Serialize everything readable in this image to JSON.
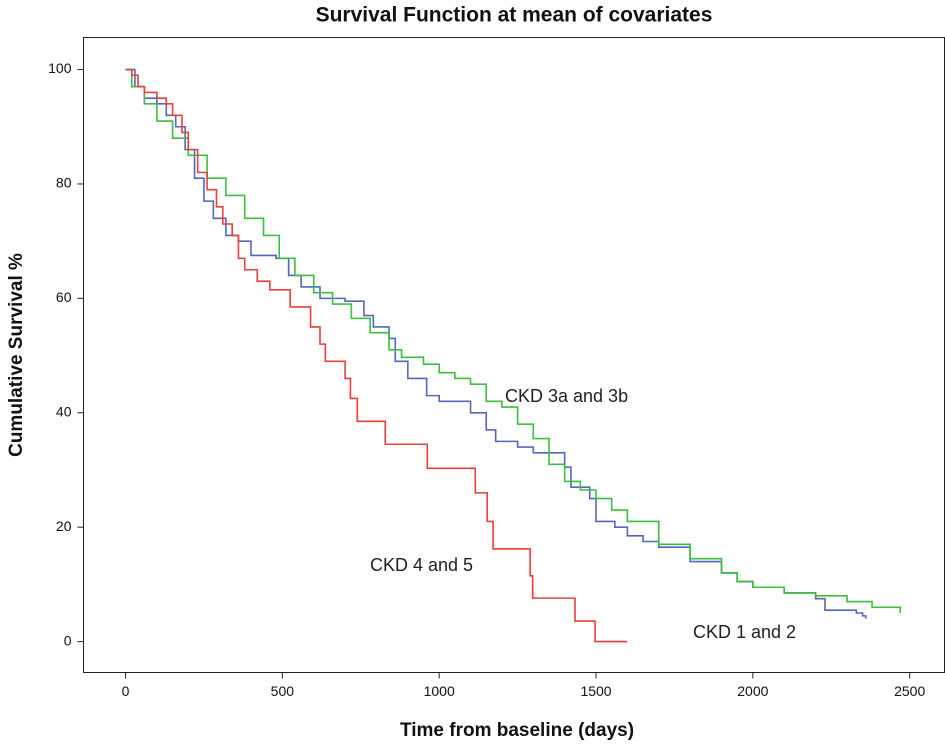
{
  "chart_data": {
    "type": "step",
    "title": "Survival Function at mean of covariates",
    "x_label": "Time from baseline (days)",
    "y_label": "Cumulative Survival %",
    "xlim": [
      -134,
      2611
    ],
    "ylim": [
      -5.4,
      105.6
    ],
    "xticks": [
      0,
      500,
      1000,
      1500,
      2000,
      2500
    ],
    "yticks": [
      0,
      20,
      40,
      60,
      80,
      100
    ],
    "grid": false,
    "series": [
      {
        "name": "CKD 1 and 2",
        "color": "#5566c0",
        "x": [
          0,
          30,
          60,
          100,
          130,
          160,
          190,
          220,
          250,
          280,
          320,
          360,
          400,
          480,
          520,
          560,
          620,
          700,
          760,
          790,
          840,
          860,
          900,
          960,
          1000,
          1100,
          1150,
          1180,
          1250,
          1300,
          1400,
          1420,
          1480,
          1500,
          1560,
          1600,
          1650,
          1700,
          1800,
          1900,
          1950,
          2000,
          2100,
          2200,
          2230,
          2330,
          2350,
          2360
        ],
        "values": [
          100,
          97,
          95,
          94,
          92,
          90,
          86,
          81,
          77,
          74,
          71,
          70,
          67.5,
          67,
          64,
          62,
          60,
          59.5,
          57,
          55,
          53,
          49,
          46,
          43,
          42,
          40,
          37,
          35,
          34,
          33,
          30.5,
          27,
          25,
          21,
          20,
          18.5,
          17.5,
          16.5,
          14,
          12,
          10.5,
          9.5,
          8.5,
          7.5,
          5.5,
          5,
          4.5,
          4
        ]
      },
      {
        "name": "CKD 3a and 3b",
        "color": "#3cbf3c",
        "x": [
          0,
          20,
          60,
          100,
          150,
          200,
          260,
          320,
          380,
          440,
          490,
          540,
          600,
          660,
          720,
          780,
          840,
          880,
          950,
          1000,
          1050,
          1100,
          1150,
          1200,
          1250,
          1300,
          1350,
          1400,
          1450,
          1500,
          1550,
          1600,
          1700,
          1800,
          1900,
          1950,
          2000,
          2100,
          2200,
          2300,
          2380,
          2470
        ],
        "values": [
          100,
          97,
          94,
          91,
          88,
          85,
          81,
          78,
          74,
          71,
          67,
          64,
          61,
          59,
          56.5,
          54,
          51,
          49.7,
          48.5,
          47,
          46,
          45,
          42,
          41,
          38,
          35.5,
          31,
          28,
          26.5,
          25,
          23,
          21,
          17,
          14.5,
          12,
          10.5,
          9.5,
          8.5,
          8,
          7,
          6,
          5
        ]
      },
      {
        "name": "CKD 4 and 5",
        "color": "#e8403a",
        "x": [
          0,
          20,
          40,
          60,
          100,
          130,
          150,
          180,
          200,
          230,
          260,
          290,
          310,
          340,
          360,
          380,
          420,
          460,
          525,
          590,
          620,
          637,
          700,
          717,
          739,
          828,
          962,
          1115,
          1153,
          1172,
          1290,
          1298,
          1433,
          1497,
          1599
        ],
        "values": [
          100,
          99,
          97,
          96,
          95,
          94,
          92,
          89,
          86,
          82,
          79,
          76,
          73,
          71,
          67,
          65,
          63,
          61.5,
          58.5,
          55,
          52,
          49,
          46,
          42.5,
          38.5,
          34.5,
          30.3,
          26,
          21,
          16.2,
          11.5,
          7.6,
          3.6,
          0,
          0
        ]
      }
    ]
  }
}
